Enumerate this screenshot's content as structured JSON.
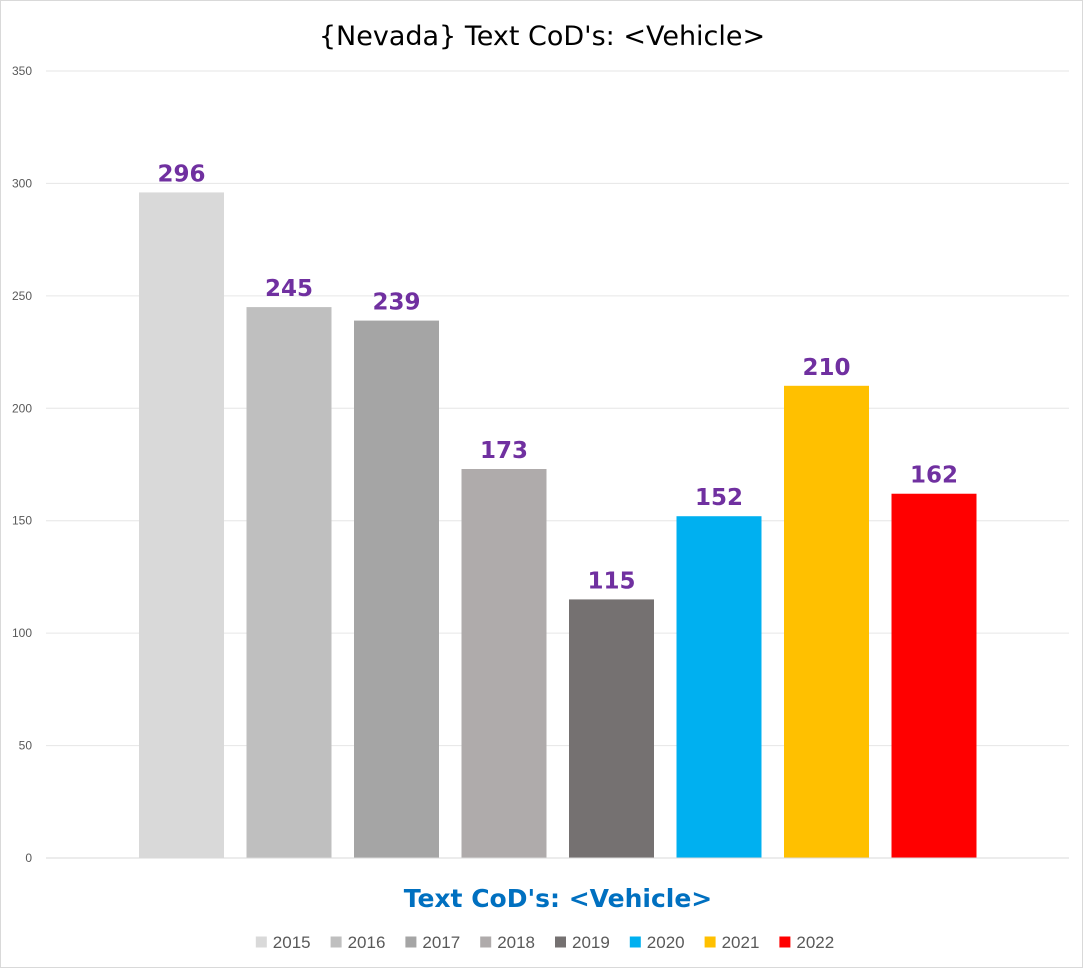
{
  "chart_data": {
    "type": "bar",
    "title": "{Nevada}  Text CoD's: <Vehicle>",
    "xlabel": "Text CoD's: <Vehicle>",
    "ylabel": "",
    "ylim": [
      0,
      350
    ],
    "yticks": [
      0,
      50,
      100,
      150,
      200,
      250,
      300,
      350
    ],
    "categories": [
      "Text CoD's: <Vehicle>"
    ],
    "grid": true,
    "legend_position": "bottom",
    "series": [
      {
        "name": "2015",
        "values": [
          296
        ],
        "color": "#d9d9d9"
      },
      {
        "name": "2016",
        "values": [
          245
        ],
        "color": "#bfbfbf"
      },
      {
        "name": "2017",
        "values": [
          239
        ],
        "color": "#a5a5a5"
      },
      {
        "name": "2018",
        "values": [
          173
        ],
        "color": "#afabab"
      },
      {
        "name": "2019",
        "values": [
          115
        ],
        "color": "#757171"
      },
      {
        "name": "2020",
        "values": [
          152
        ],
        "color": "#00b0f0"
      },
      {
        "name": "2021",
        "values": [
          210
        ],
        "color": "#ffc000"
      },
      {
        "name": "2022",
        "values": [
          162
        ],
        "color": "#ff0000"
      }
    ],
    "data_label_color": "#7030a0",
    "xlabel_color": "#0070c0"
  }
}
